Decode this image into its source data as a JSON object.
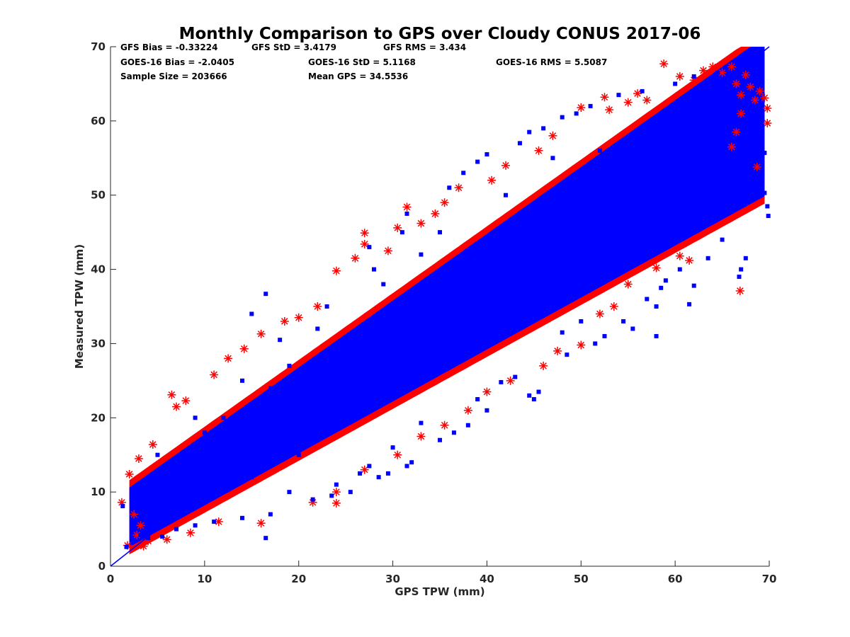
{
  "chart_data": {
    "type": "scatter",
    "title": "Monthly Comparison to GPS over Cloudy CONUS 2017-06",
    "xlabel": "GPS TPW (mm)",
    "ylabel": "Measured TPW (mm)",
    "xlim": [
      0,
      70
    ],
    "ylim": [
      0,
      70
    ],
    "xticks": [
      0,
      10,
      20,
      30,
      40,
      50,
      60,
      70
    ],
    "yticks": [
      0,
      10,
      20,
      30,
      40,
      50,
      60,
      70
    ],
    "grid": false,
    "colors": {
      "gfs": "#ff0000",
      "goes16": "#0000ff",
      "reference_line": "#0000ff"
    },
    "stats": {
      "gfs_bias": "GFS Bias = -0.33224",
      "gfs_std": "GFS StD = 3.4179",
      "gfs_rms": "GFS RMS = 3.434",
      "goes_bias": "GOES-16 Bias = -2.0405",
      "goes_std": "GOES-16 StD = 5.1168",
      "goes_rms": "GOES-16 RMS = 5.5087",
      "sample_size": "Sample Size = 203666",
      "mean_gps": "Mean GPS = 34.5536"
    },
    "reference_line": {
      "x": [
        0,
        70
      ],
      "y": [
        0,
        70
      ]
    },
    "series": [
      {
        "marker": "asterisk",
        "color": "#ff0000",
        "points": [
          [
            1.2,
            8.6
          ],
          [
            2.0,
            12.4
          ],
          [
            2.5,
            7.0
          ],
          [
            1.8,
            2.8
          ],
          [
            3.5,
            2.7
          ],
          [
            2.8,
            4.2
          ],
          [
            3.0,
            14.5
          ],
          [
            4.5,
            16.4
          ],
          [
            6.5,
            23.1
          ],
          [
            7.0,
            21.5
          ],
          [
            8.0,
            22.3
          ],
          [
            11.0,
            25.8
          ],
          [
            12.5,
            28.0
          ],
          [
            14.2,
            29.3
          ],
          [
            16.0,
            31.3
          ],
          [
            18.5,
            33.0
          ],
          [
            20.0,
            33.5
          ],
          [
            22.0,
            35.0
          ],
          [
            24.0,
            39.8
          ],
          [
            26.0,
            41.5
          ],
          [
            27.0,
            44.9
          ],
          [
            27.0,
            43.4
          ],
          [
            29.5,
            42.5
          ],
          [
            30.5,
            45.6
          ],
          [
            31.5,
            48.4
          ],
          [
            33.0,
            46.2
          ],
          [
            34.5,
            47.5
          ],
          [
            35.5,
            49.0
          ],
          [
            37.0,
            51.0
          ],
          [
            40.5,
            52.0
          ],
          [
            42.0,
            54.0
          ],
          [
            45.5,
            56.0
          ],
          [
            47.0,
            58.0
          ],
          [
            50.0,
            61.8
          ],
          [
            52.5,
            63.2
          ],
          [
            53.0,
            61.5
          ],
          [
            55.0,
            62.5
          ],
          [
            56.0,
            63.7
          ],
          [
            57.0,
            62.8
          ],
          [
            58.8,
            67.7
          ],
          [
            60.5,
            66.0
          ],
          [
            62.0,
            65.5
          ],
          [
            63.0,
            66.8
          ],
          [
            64.0,
            67.3
          ],
          [
            65.0,
            66.5
          ],
          [
            66.0,
            67.3
          ],
          [
            66.5,
            65.0
          ],
          [
            67.0,
            63.5
          ],
          [
            67.5,
            66.2
          ],
          [
            68.0,
            64.6
          ],
          [
            68.5,
            62.8
          ],
          [
            69.0,
            64.0
          ],
          [
            69.5,
            63.1
          ],
          [
            69.8,
            61.7
          ],
          [
            69.8,
            59.7
          ],
          [
            67.0,
            61.0
          ],
          [
            66.5,
            58.5
          ],
          [
            66.0,
            56.5
          ],
          [
            68.7,
            53.8
          ],
          [
            66.9,
            37.1
          ],
          [
            60.5,
            41.8
          ],
          [
            61.5,
            41.2
          ],
          [
            58.0,
            40.2
          ],
          [
            55.0,
            38.0
          ],
          [
            53.5,
            35.0
          ],
          [
            52.0,
            34.0
          ],
          [
            50.0,
            29.8
          ],
          [
            47.5,
            29.0
          ],
          [
            46.0,
            27.0
          ],
          [
            42.5,
            25.0
          ],
          [
            40.0,
            23.5
          ],
          [
            38.0,
            21.0
          ],
          [
            35.5,
            19.0
          ],
          [
            33.0,
            17.5
          ],
          [
            30.5,
            15.0
          ],
          [
            27.0,
            13.0
          ],
          [
            24.0,
            8.5
          ],
          [
            21.5,
            8.6
          ],
          [
            24.0,
            10.0
          ],
          [
            16.0,
            5.8
          ],
          [
            11.5,
            6.0
          ],
          [
            8.5,
            4.5
          ],
          [
            6.0,
            3.6
          ],
          [
            4.0,
            3.4
          ],
          [
            3.2,
            5.5
          ]
        ]
      },
      {
        "marker": "square",
        "color": "#0000ff",
        "points": [
          [
            16.5,
            36.7
          ],
          [
            15.0,
            34.0
          ],
          [
            18.0,
            30.5
          ],
          [
            17.0,
            24.0
          ],
          [
            31.5,
            47.5
          ],
          [
            31.0,
            45.0
          ],
          [
            27.5,
            43.0
          ],
          [
            28.0,
            40.0
          ],
          [
            36.0,
            51.0
          ],
          [
            37.5,
            53.0
          ],
          [
            39.0,
            54.5
          ],
          [
            40.0,
            55.5
          ],
          [
            43.5,
            57.0
          ],
          [
            44.5,
            58.5
          ],
          [
            46.0,
            59.0
          ],
          [
            48.0,
            60.5
          ],
          [
            49.5,
            61.0
          ],
          [
            51.0,
            62.0
          ],
          [
            54.0,
            63.5
          ],
          [
            56.5,
            64.0
          ],
          [
            60.0,
            65.0
          ],
          [
            62.0,
            66.0
          ],
          [
            64.5,
            66.5
          ],
          [
            69.5,
            55.7
          ],
          [
            69.5,
            50.3
          ],
          [
            69.8,
            48.5
          ],
          [
            69.9,
            47.2
          ],
          [
            69.0,
            52.5
          ],
          [
            68.0,
            55.0
          ],
          [
            67.3,
            58.0
          ],
          [
            66.8,
            39.0
          ],
          [
            67.0,
            40.0
          ],
          [
            67.5,
            41.5
          ],
          [
            65.0,
            44.0
          ],
          [
            63.5,
            41.5
          ],
          [
            62.0,
            37.8
          ],
          [
            61.5,
            35.3
          ],
          [
            60.5,
            40.0
          ],
          [
            59.0,
            38.5
          ],
          [
            58.5,
            37.5
          ],
          [
            58.0,
            31.0
          ],
          [
            58.0,
            35.0
          ],
          [
            57.0,
            36.0
          ],
          [
            55.5,
            32.0
          ],
          [
            54.5,
            33.0
          ],
          [
            52.5,
            31.0
          ],
          [
            51.5,
            30.0
          ],
          [
            50.0,
            33.0
          ],
          [
            48.5,
            28.5
          ],
          [
            48.0,
            31.5
          ],
          [
            45.5,
            23.5
          ],
          [
            44.5,
            23.0
          ],
          [
            45.0,
            22.5
          ],
          [
            43.0,
            25.5
          ],
          [
            41.5,
            24.8
          ],
          [
            40.0,
            21.0
          ],
          [
            39.0,
            22.5
          ],
          [
            38.0,
            19.0
          ],
          [
            36.5,
            18.0
          ],
          [
            35.0,
            17.0
          ],
          [
            33.0,
            19.3
          ],
          [
            32.0,
            14.0
          ],
          [
            31.5,
            13.5
          ],
          [
            30.0,
            16.0
          ],
          [
            29.5,
            12.5
          ],
          [
            28.5,
            12.0
          ],
          [
            27.5,
            13.5
          ],
          [
            26.5,
            12.5
          ],
          [
            25.5,
            10.0
          ],
          [
            24.0,
            11.0
          ],
          [
            23.5,
            9.5
          ],
          [
            21.5,
            9.0
          ],
          [
            19.0,
            10.0
          ],
          [
            17.0,
            7.0
          ],
          [
            16.5,
            3.8
          ],
          [
            14.0,
            6.5
          ],
          [
            11.0,
            6.0
          ],
          [
            9.0,
            5.5
          ],
          [
            7.0,
            5.0
          ],
          [
            5.5,
            4.0
          ],
          [
            4.0,
            3.8
          ],
          [
            3.2,
            4.2
          ],
          [
            2.5,
            5.0
          ],
          [
            1.3,
            8.1
          ],
          [
            1.7,
            2.6
          ],
          [
            2.8,
            7.5
          ],
          [
            10.0,
            18.0
          ],
          [
            12.0,
            20.0
          ],
          [
            20.0,
            22.0
          ],
          [
            22.0,
            32.0
          ],
          [
            25.0,
            30.0
          ],
          [
            33.0,
            42.0
          ],
          [
            35.0,
            45.0
          ],
          [
            42.0,
            50.0
          ],
          [
            47.0,
            55.0
          ],
          [
            52.0,
            56.0
          ],
          [
            56.0,
            58.0
          ],
          [
            60.0,
            57.0
          ],
          [
            64.0,
            60.0
          ],
          [
            61.0,
            50.0
          ],
          [
            50.0,
            45.0
          ],
          [
            45.0,
            40.0
          ],
          [
            40.0,
            35.0
          ],
          [
            35.0,
            30.0
          ],
          [
            30.0,
            25.0
          ],
          [
            25.0,
            20.0
          ],
          [
            20.0,
            15.0
          ],
          [
            15.0,
            12.0
          ],
          [
            8.0,
            9.0
          ],
          [
            6.0,
            12.0
          ],
          [
            5.0,
            15.0
          ],
          [
            9.0,
            20.0
          ],
          [
            14.0,
            25.0
          ],
          [
            19.0,
            27.0
          ],
          [
            23.0,
            35.0
          ],
          [
            29.0,
            38.0
          ]
        ]
      }
    ]
  }
}
